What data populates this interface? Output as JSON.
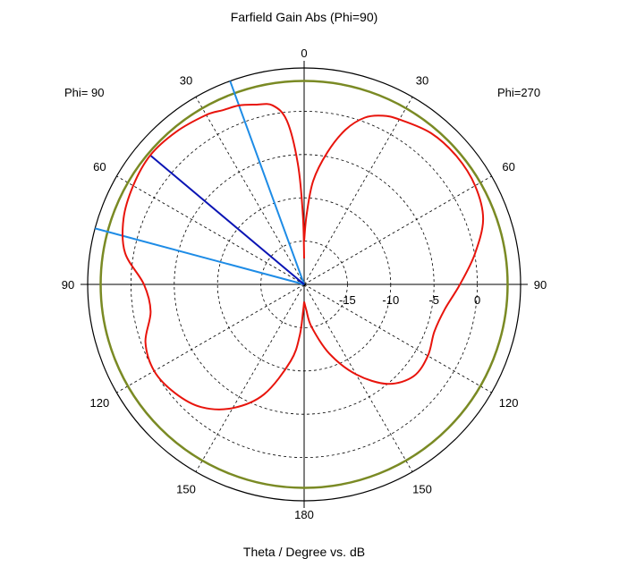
{
  "chart_data": {
    "type": "polar",
    "title": "Farfield Gain Abs (Phi=90)",
    "xlabel": "Theta / Degree vs. dB",
    "left_half_label": "Phi= 90",
    "right_half_label": "Phi=270",
    "angle_tick_labels": [
      "0",
      "30",
      "60",
      "90",
      "120",
      "150",
      "180"
    ],
    "radial_tick_labels": [
      "-15",
      "-10",
      "-5",
      "0"
    ],
    "radial_ticks_db": [
      -15,
      -10,
      -5,
      0
    ],
    "r_range_db": [
      -20,
      5
    ],
    "outer_reference_db": 3.5,
    "grid": true,
    "colors": {
      "pattern": "#e8140c",
      "reference_circle": "#7a8a24",
      "main_lobe_line": "#0a14b4",
      "beamwidth_lines": "#1e8ce6",
      "axes": "#000000",
      "grid": "#000000"
    },
    "main_lobe": {
      "theta_deg": 50,
      "side": "Phi= 90",
      "gain_db": 3.2
    },
    "beamwidth_lines_theta_deg": [
      20,
      75
    ],
    "series": [
      {
        "side": "Phi= 90",
        "points": [
          {
            "theta": 0,
            "gain": -17
          },
          {
            "theta": 1,
            "gain": -12
          },
          {
            "theta": 3,
            "gain": -6
          },
          {
            "theta": 6,
            "gain": -1
          },
          {
            "theta": 10,
            "gain": 1
          },
          {
            "theta": 15,
            "gain": 1.5
          },
          {
            "theta": 20,
            "gain": 2.0
          },
          {
            "theta": 25,
            "gain": 2.2
          },
          {
            "theta": 30,
            "gain": 2.6
          },
          {
            "theta": 40,
            "gain": 3.0
          },
          {
            "theta": 50,
            "gain": 3.2
          },
          {
            "theta": 60,
            "gain": 2.8
          },
          {
            "theta": 70,
            "gain": 2.2
          },
          {
            "theta": 80,
            "gain": 1.0
          },
          {
            "theta": 90,
            "gain": -1.5
          },
          {
            "theta": 100,
            "gain": -2.0
          },
          {
            "theta": 110,
            "gain": -0.5
          },
          {
            "theta": 120,
            "gain": 0.0
          },
          {
            "theta": 130,
            "gain": -0.5
          },
          {
            "theta": 140,
            "gain": -1.5
          },
          {
            "theta": 150,
            "gain": -3.5
          },
          {
            "theta": 160,
            "gain": -6.5
          },
          {
            "theta": 170,
            "gain": -11
          },
          {
            "theta": 175,
            "gain": -14
          },
          {
            "theta": 178,
            "gain": -17
          },
          {
            "theta": 180,
            "gain": -18
          }
        ]
      },
      {
        "side": "Phi=270",
        "points": [
          {
            "theta": 0,
            "gain": -15
          },
          {
            "theta": 2,
            "gain": -12
          },
          {
            "theta": 5,
            "gain": -8
          },
          {
            "theta": 10,
            "gain": -4.5
          },
          {
            "theta": 15,
            "gain": -1.5
          },
          {
            "theta": 20,
            "gain": 0.5
          },
          {
            "theta": 25,
            "gain": 1.5
          },
          {
            "theta": 30,
            "gain": 2.0
          },
          {
            "theta": 40,
            "gain": 2.8
          },
          {
            "theta": 50,
            "gain": 3.0
          },
          {
            "theta": 60,
            "gain": 2.8
          },
          {
            "theta": 70,
            "gain": 2.0
          },
          {
            "theta": 80,
            "gain": 0.0
          },
          {
            "theta": 90,
            "gain": -2.0
          },
          {
            "theta": 100,
            "gain": -3.5
          },
          {
            "theta": 110,
            "gain": -4.0
          },
          {
            "theta": 120,
            "gain": -3.5
          },
          {
            "theta": 130,
            "gain": -3.5
          },
          {
            "theta": 140,
            "gain": -5.0
          },
          {
            "theta": 150,
            "gain": -8.0
          },
          {
            "theta": 160,
            "gain": -11.5
          },
          {
            "theta": 170,
            "gain": -15
          },
          {
            "theta": 175,
            "gain": -17
          },
          {
            "theta": 180,
            "gain": -18
          }
        ]
      }
    ]
  }
}
